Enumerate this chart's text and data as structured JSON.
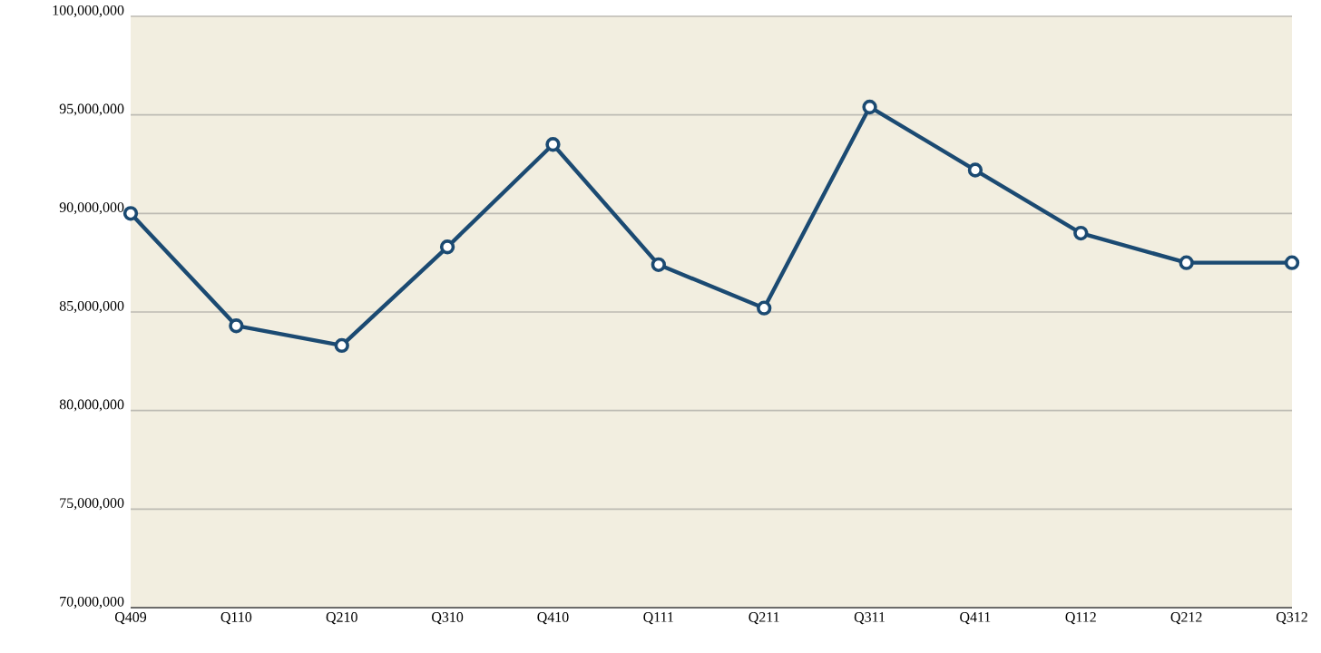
{
  "chart_data": {
    "type": "line",
    "categories": [
      "Q409",
      "Q110",
      "Q210",
      "Q310",
      "Q410",
      "Q111",
      "Q211",
      "Q311",
      "Q411",
      "Q112",
      "Q212",
      "Q312"
    ],
    "series": [
      {
        "color": "#1b4a72",
        "values": [
          90000000,
          84300000,
          83300000,
          88300000,
          93500000,
          87400000,
          85200000,
          95400000,
          92200000,
          89000000,
          87500000,
          87500000
        ]
      }
    ],
    "ylim": [
      70000000,
      100000000
    ],
    "yticks": [
      {
        "value": 70000000,
        "label": "70,000,000"
      },
      {
        "value": 75000000,
        "label": "75,000,000"
      },
      {
        "value": 80000000,
        "label": "80,000,000"
      },
      {
        "value": 85000000,
        "label": "85,000,000"
      },
      {
        "value": 90000000,
        "label": "90,000,000"
      },
      {
        "value": 95000000,
        "label": "95,000,000"
      },
      {
        "value": 100000000,
        "label": "100,000,000"
      }
    ],
    "grid": "y",
    "marker": "circle",
    "line_style": "solid"
  }
}
